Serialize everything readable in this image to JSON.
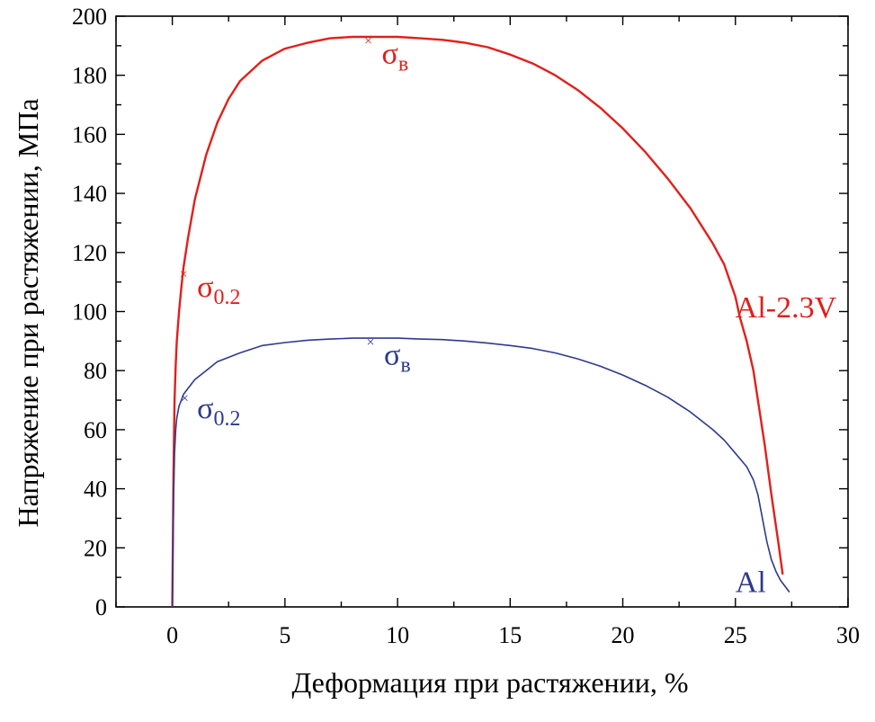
{
  "chart_data": {
    "type": "line",
    "title": "",
    "xlabel": "Деформация при растяжении, %",
    "ylabel": "Напряжение при растяжении, МПа",
    "xlim": [
      -2.5,
      30
    ],
    "ylim": [
      0,
      200
    ],
    "x_ticks": [
      0,
      5,
      10,
      15,
      20,
      25,
      30
    ],
    "y_ticks": [
      0,
      20,
      40,
      60,
      80,
      100,
      120,
      140,
      160,
      180,
      200
    ],
    "grid": false,
    "legend": "none",
    "series": [
      {
        "name": "Al-2.3V",
        "color": "#e0201b",
        "x": [
          0,
          0.05,
          0.1,
          0.15,
          0.2,
          0.3,
          0.4,
          0.5,
          0.7,
          1.0,
          1.5,
          2.0,
          2.5,
          3.0,
          4.0,
          5.0,
          6.0,
          7.0,
          8.0,
          9.0,
          10.0,
          11.0,
          12.0,
          13.0,
          14.0,
          15.0,
          16.0,
          17.0,
          18.0,
          19.0,
          20.0,
          21.0,
          22.0,
          23.0,
          24.0,
          24.5,
          25.0,
          25.2,
          25.5,
          25.8,
          26.0,
          26.3,
          26.6,
          26.9,
          27.1
        ],
        "y": [
          0,
          45,
          70,
          82,
          90,
          100,
          108,
          115,
          125,
          138,
          153,
          164,
          172,
          178,
          185,
          189,
          191,
          192.5,
          193,
          193,
          193,
          192.5,
          192,
          191,
          189.5,
          187,
          184,
          180,
          175,
          169,
          162,
          154,
          145,
          135,
          123,
          116,
          105,
          98,
          90,
          80,
          70,
          55,
          38,
          22,
          11
        ]
      },
      {
        "name": "Al",
        "color": "#2e3a8c",
        "x": [
          0,
          0.05,
          0.1,
          0.15,
          0.2,
          0.3,
          0.4,
          0.5,
          0.7,
          1.0,
          1.5,
          2.0,
          3.0,
          4.0,
          5.0,
          6.0,
          7.0,
          8.0,
          9.0,
          10.0,
          11.0,
          12.0,
          13.0,
          14.0,
          15.0,
          16.0,
          17.0,
          18.0,
          19.0,
          20.0,
          21.0,
          22.0,
          23.0,
          24.0,
          24.5,
          25.0,
          25.5,
          25.8,
          26.0,
          26.2,
          26.4,
          26.6,
          26.8,
          27.0,
          27.2,
          27.4
        ],
        "y": [
          0,
          35,
          52,
          60,
          64,
          68,
          70,
          72,
          74,
          77,
          80,
          83,
          86,
          88.5,
          89.5,
          90.3,
          90.7,
          91,
          91,
          91,
          90.7,
          90.5,
          90,
          89.3,
          88.5,
          87.5,
          86,
          84,
          81.5,
          78.5,
          75,
          71,
          66,
          60,
          56.5,
          52,
          47.5,
          43,
          38,
          30,
          22,
          16,
          12,
          9,
          7,
          5
        ]
      }
    ],
    "annotations": [
      {
        "series": "Al-2.3V",
        "marker": "σ0.2",
        "symbol": "×",
        "x": 0.5,
        "y": 113,
        "label_x": 1.1,
        "label_y": 105
      },
      {
        "series": "Al-2.3V",
        "marker": "σв",
        "symbol": "×",
        "x": 8.7,
        "y": 192,
        "label_x": 9.3,
        "label_y": 184
      },
      {
        "series": "Al",
        "marker": "σ0.2",
        "symbol": "×",
        "x": 0.55,
        "y": 71,
        "label_x": 1.1,
        "label_y": 64
      },
      {
        "series": "Al",
        "marker": "σв",
        "symbol": "×",
        "x": 8.8,
        "y": 90,
        "label_x": 9.4,
        "label_y": 82
      }
    ],
    "series_labels": [
      {
        "text": "Al-2.3V",
        "series": "Al-2.3V",
        "x": 25.0,
        "y": 98
      },
      {
        "text": "Al",
        "series": "Al",
        "x": 25.0,
        "y": 5
      }
    ]
  }
}
